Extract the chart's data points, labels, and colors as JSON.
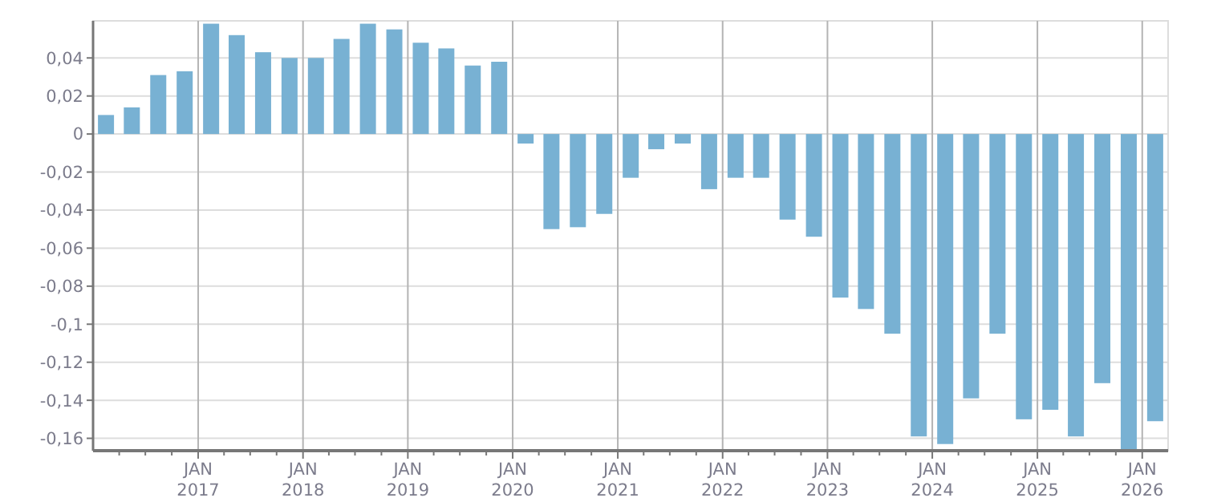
{
  "chart_data": {
    "type": "bar",
    "color": "#78b1d3",
    "x": [
      "2016-02-15",
      "2016-05-15",
      "2016-08-15",
      "2016-11-15",
      "2017-02-15",
      "2017-05-15",
      "2017-08-15",
      "2017-11-15",
      "2018-02-15",
      "2018-05-15",
      "2018-08-15",
      "2018-11-15",
      "2019-02-15",
      "2019-05-15",
      "2019-08-15",
      "2019-11-15",
      "2020-02-15",
      "2020-05-15",
      "2020-08-15",
      "2020-11-15",
      "2021-02-15",
      "2021-05-15",
      "2021-08-15",
      "2021-11-15",
      "2022-02-15",
      "2022-05-15",
      "2022-08-15",
      "2022-11-15",
      "2023-02-15",
      "2023-05-15",
      "2023-08-15",
      "2023-11-15",
      "2024-02-15",
      "2024-05-15",
      "2024-08-15",
      "2024-11-15",
      "2025-02-15",
      "2025-05-15",
      "2025-08-15",
      "2025-11-15",
      "2026-02-15"
    ],
    "values": [
      0.01,
      0.014,
      0.031,
      0.033,
      0.058,
      0.052,
      0.043,
      0.04,
      0.04,
      0.05,
      0.058,
      0.055,
      0.048,
      0.045,
      0.036,
      0.038,
      -0.005,
      -0.05,
      -0.049,
      -0.042,
      -0.023,
      -0.008,
      -0.005,
      -0.029,
      -0.023,
      -0.023,
      -0.045,
      -0.054,
      -0.086,
      -0.092,
      -0.105,
      -0.159,
      -0.163,
      -0.139,
      -0.105,
      -0.15,
      -0.145,
      -0.159,
      -0.131,
      -0.166,
      -0.151
    ],
    "ylim": [
      -0.1665,
      0.0595
    ],
    "yticks": [
      {
        "value": -0.16,
        "label": "-0,16"
      },
      {
        "value": -0.14,
        "label": "-0,14"
      },
      {
        "value": -0.12,
        "label": "-0,12"
      },
      {
        "value": -0.1,
        "label": "-0,1"
      },
      {
        "value": -0.08,
        "label": "-0,08"
      },
      {
        "value": -0.06,
        "label": "-0,06"
      },
      {
        "value": -0.04,
        "label": "-0,04"
      },
      {
        "value": -0.02,
        "label": "-0,02"
      },
      0,
      {
        "value": 0.02,
        "label": "0,02"
      },
      {
        "value": 0.04,
        "label": "0,04"
      }
    ],
    "xlim": [
      "2016-01",
      "2026-04"
    ],
    "xticks": [
      {
        "value": "2016-04",
        "label": null
      },
      {
        "value": "2016-07",
        "label": null
      },
      {
        "value": "2016-10",
        "label": null
      },
      {
        "value": "2017-01",
        "label": "JAN 2017"
      },
      {
        "value": "2017-04",
        "label": null
      },
      {
        "value": "2017-07",
        "label": null
      },
      {
        "value": "2017-10",
        "label": null
      },
      {
        "value": "2018-01",
        "label": "JAN 2018"
      },
      {
        "value": "2018-04",
        "label": null
      },
      {
        "value": "2018-07",
        "label": null
      },
      {
        "value": "2018-10",
        "label": null
      },
      {
        "value": "2019-01",
        "label": "JAN 2019"
      },
      {
        "value": "2019-04",
        "label": null
      },
      {
        "value": "2019-07",
        "label": null
      },
      {
        "value": "2019-10",
        "label": null
      },
      {
        "value": "2020-01",
        "label": "JAN 2020"
      },
      {
        "value": "2020-04",
        "label": null
      },
      {
        "value": "2020-07",
        "label": null
      },
      {
        "value": "2020-10",
        "label": null
      },
      {
        "value": "2021-01",
        "label": "JAN 2021"
      },
      {
        "value": "2021-04",
        "label": null
      },
      {
        "value": "2021-07",
        "label": null
      },
      {
        "value": "2021-10",
        "label": null
      },
      {
        "value": "2022-01",
        "label": "JAN 2022"
      },
      {
        "value": "2022-04",
        "label": null
      },
      {
        "value": "2022-07",
        "label": null
      },
      {
        "value": "2022-10",
        "label": null
      },
      {
        "value": "2023-01",
        "label": "JAN 2023"
      },
      {
        "value": "2023-04",
        "label": null
      },
      {
        "value": "2023-07",
        "label": null
      },
      {
        "value": "2023-10",
        "label": null
      },
      {
        "value": "2024-01",
        "label": "JAN 2024"
      },
      {
        "value": "2024-04",
        "label": null
      },
      {
        "value": "2024-07",
        "label": null
      },
      {
        "value": "2024-10",
        "label": null
      },
      {
        "value": "2025-01",
        "label": "JAN 2025"
      },
      {
        "value": "2025-04",
        "label": null
      },
      {
        "value": "2025-07",
        "label": null
      },
      {
        "value": "2025-10",
        "label": null
      },
      {
        "value": "2026-01",
        "label": "JAN 2026"
      }
    ],
    "grid": true
  }
}
